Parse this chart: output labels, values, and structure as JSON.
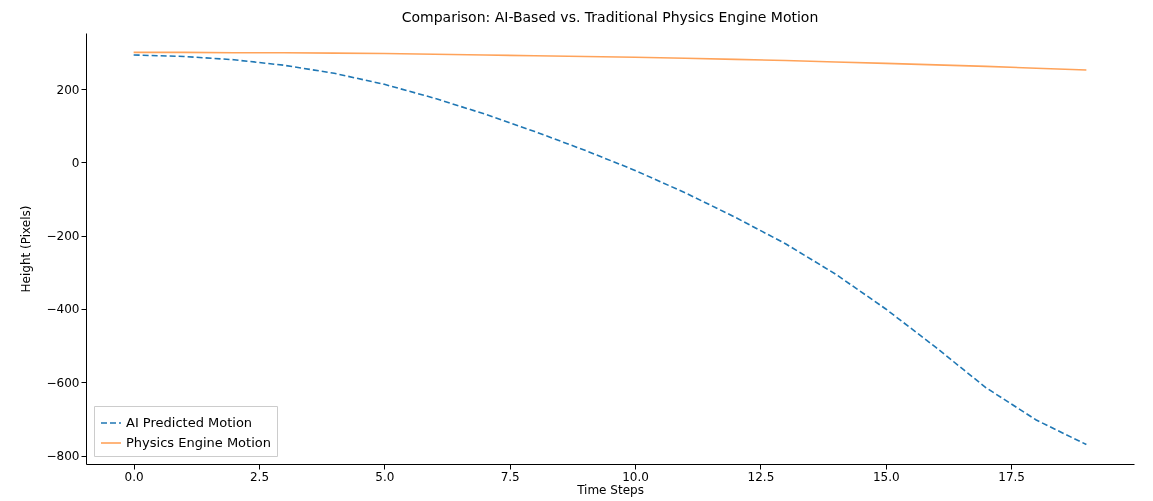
{
  "chart_data": {
    "type": "line",
    "title": "Comparison: AI-Based vs. Traditional Physics Engine Motion",
    "xlabel": "Time Steps",
    "ylabel": "Height (Pixels)",
    "x": [
      0,
      1,
      2,
      3,
      4,
      5,
      6,
      7,
      8,
      9,
      10,
      11,
      12,
      13,
      14,
      15,
      16,
      17,
      18,
      19
    ],
    "series": [
      {
        "name": "AI Predicted Motion",
        "color": "#1f77b4",
        "line_style": "dashed",
        "values": [
          293,
          289,
          280,
          265,
          243,
          213,
          175,
          132,
          84,
          33,
          -22,
          -83,
          -150,
          -222,
          -305,
          -400,
          -505,
          -615,
          -703,
          -770
        ]
      },
      {
        "name": "Physics Engine Motion",
        "color": "#ffa35a",
        "line_style": "solid",
        "values": [
          300,
          300,
          299,
          299,
          298,
          297,
          295,
          293,
          291,
          289,
          287,
          284,
          281,
          278,
          274,
          270,
          266,
          262,
          257,
          252
        ]
      }
    ],
    "xlim": [
      -0.95,
      19.95
    ],
    "ylim": [
      -823,
      353
    ],
    "xticks": [
      {
        "value": 0,
        "label": "0.0"
      },
      {
        "value": 2.5,
        "label": "2.5"
      },
      {
        "value": 5,
        "label": "5.0"
      },
      {
        "value": 7.5,
        "label": "7.5"
      },
      {
        "value": 10,
        "label": "10.0"
      },
      {
        "value": 12.5,
        "label": "12.5"
      },
      {
        "value": 15,
        "label": "15.0"
      },
      {
        "value": 17.5,
        "label": "17.5"
      }
    ],
    "yticks": [
      {
        "value": -800,
        "label": "−800"
      },
      {
        "value": -600,
        "label": "−600"
      },
      {
        "value": -400,
        "label": "−400"
      },
      {
        "value": -200,
        "label": "−200"
      },
      {
        "value": 0,
        "label": "0"
      },
      200
    ],
    "grid": false,
    "legend": "bottom left"
  }
}
